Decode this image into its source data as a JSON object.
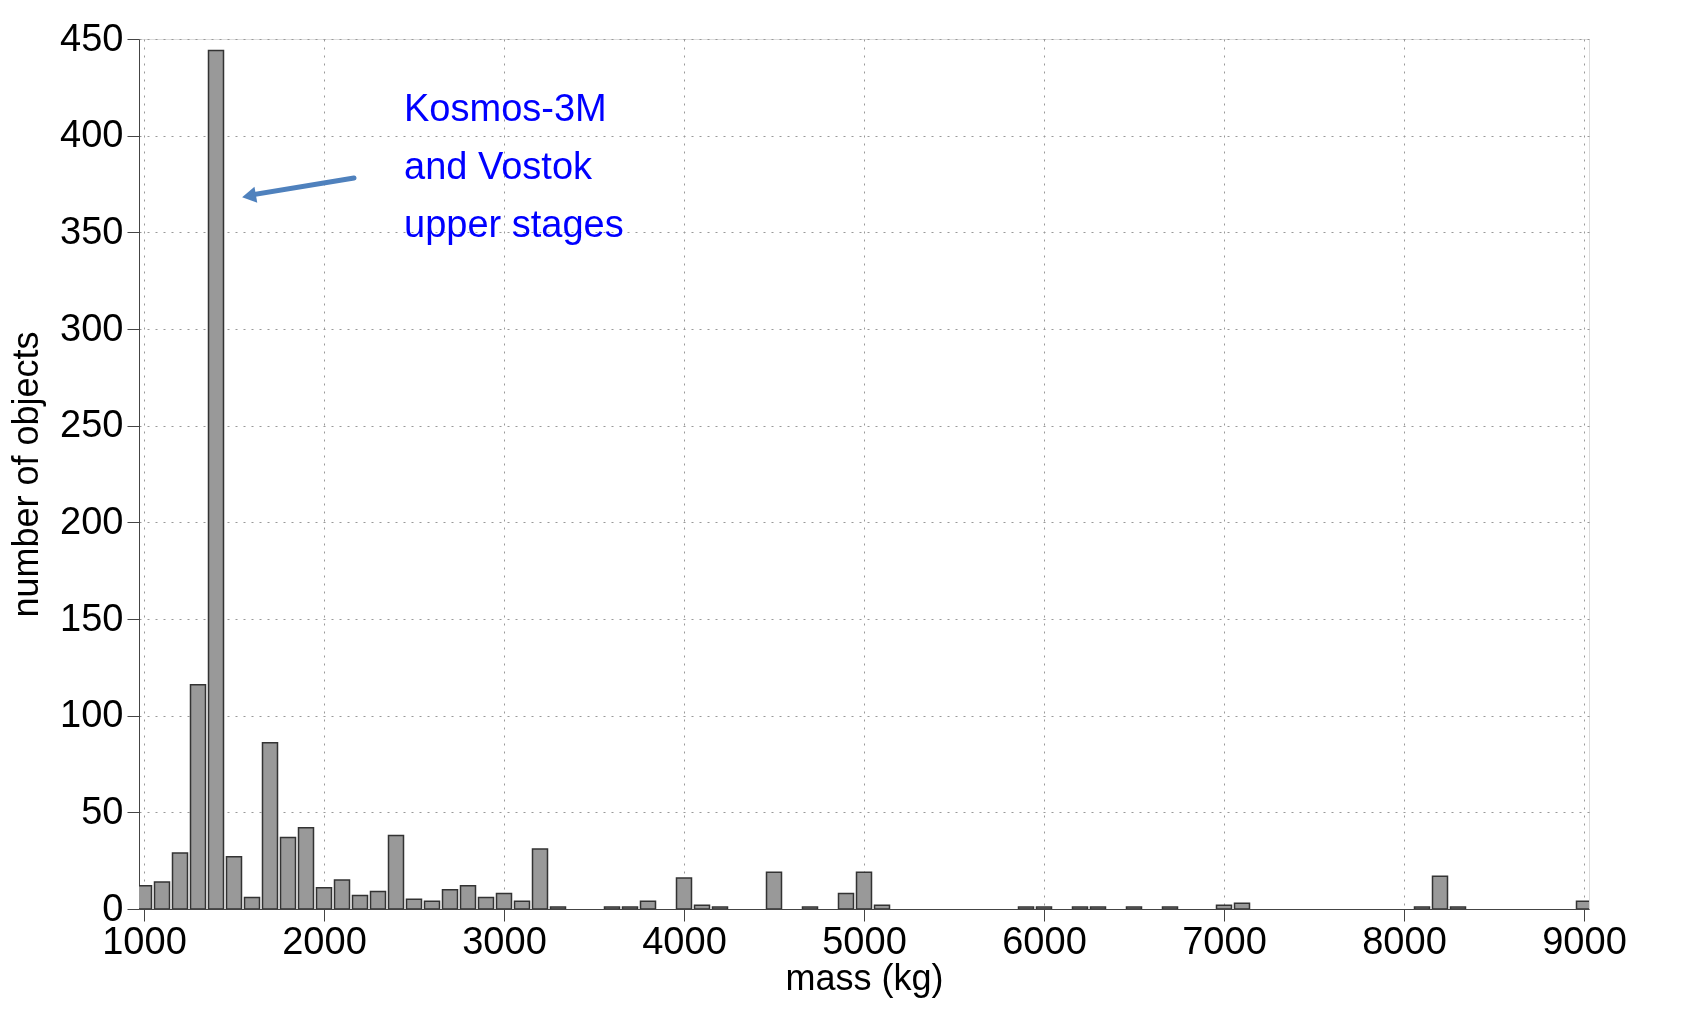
{
  "chart_data": {
    "type": "bar",
    "xlabel": "mass (kg)",
    "ylabel": "number of objects",
    "x": [
      1000,
      1100,
      1200,
      1300,
      1400,
      1500,
      1600,
      1700,
      1800,
      1900,
      2000,
      2100,
      2200,
      2300,
      2400,
      2500,
      2600,
      2700,
      2800,
      2900,
      3000,
      3100,
      3200,
      3300,
      3600,
      3700,
      3800,
      4000,
      4100,
      4200,
      4500,
      4700,
      4900,
      5000,
      5100,
      5900,
      6000,
      6200,
      6300,
      6500,
      6700,
      7000,
      7100,
      8100,
      8200,
      8300,
      9000
    ],
    "values": [
      12,
      14,
      29,
      116,
      444,
      27,
      6,
      86,
      37,
      42,
      11,
      15,
      7,
      9,
      38,
      5,
      4,
      10,
      12,
      6,
      8,
      4,
      31,
      1,
      1,
      1,
      4,
      16,
      2,
      1,
      19,
      1,
      8,
      19,
      2,
      1,
      1,
      1,
      1,
      1,
      1,
      2,
      3,
      1,
      17,
      1,
      4
    ],
    "color": "#999999",
    "xlim": [
      1000,
      9000
    ],
    "xticks": [
      1000,
      2000,
      3000,
      4000,
      5000,
      6000,
      7000,
      8000,
      9000
    ],
    "ylim": [
      0,
      450
    ],
    "yticks": [
      0,
      50,
      100,
      150,
      200,
      250,
      300,
      350,
      400,
      450
    ],
    "grid": true,
    "annotations": [
      "Kosmos-3M\nand Vostok\nupper stages"
    ]
  }
}
